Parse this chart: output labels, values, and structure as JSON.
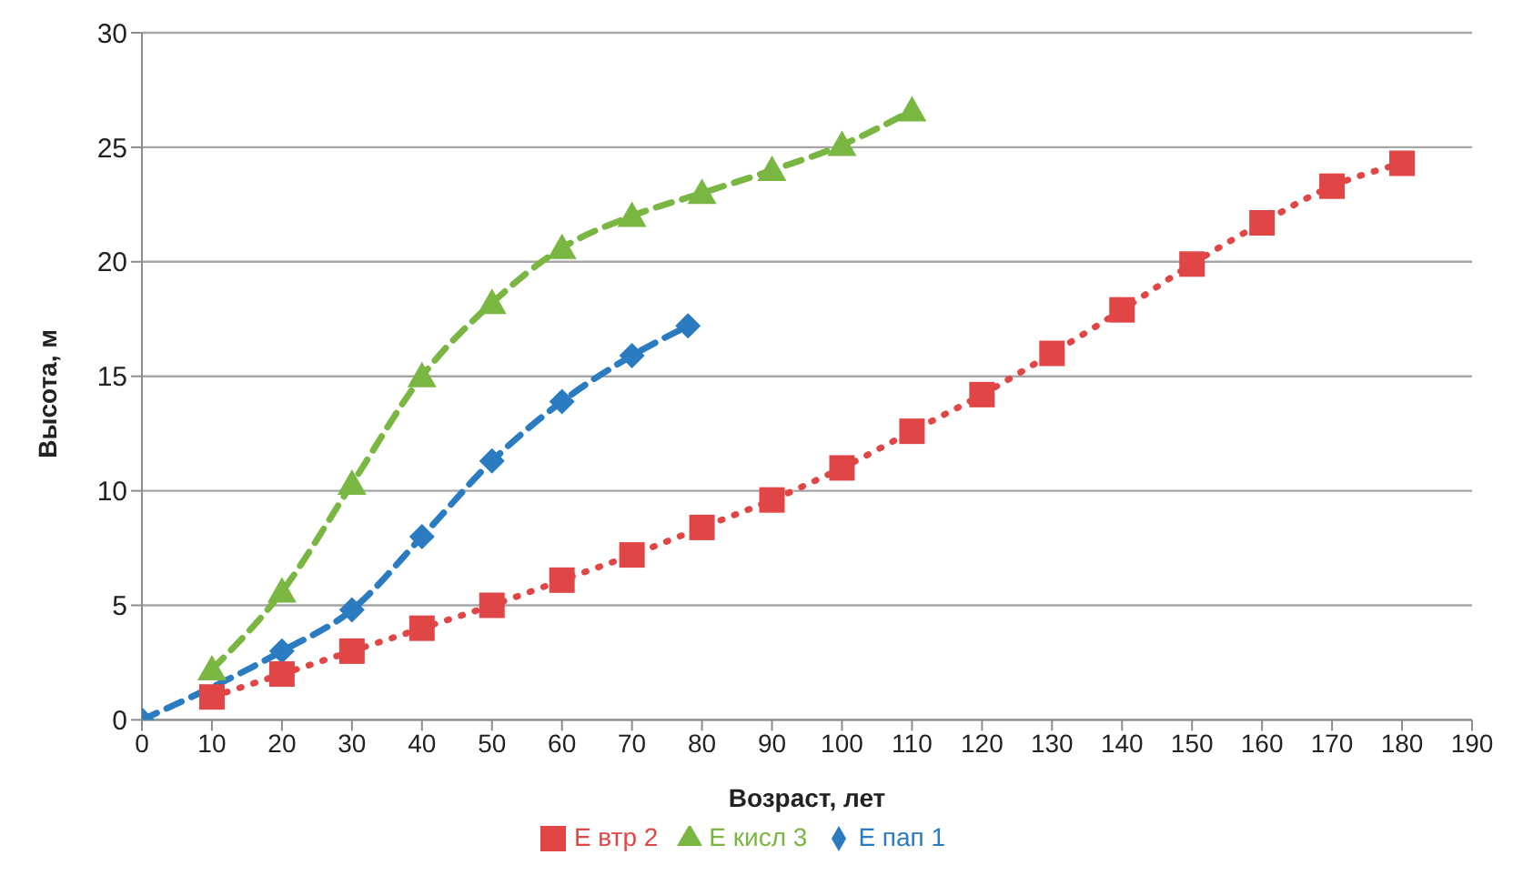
{
  "chart_data": {
    "type": "line",
    "xlabel": "Возраст, лет",
    "ylabel": "Высота, м",
    "xlim": [
      0,
      190
    ],
    "xticks": [
      0,
      10,
      20,
      30,
      40,
      50,
      60,
      70,
      80,
      90,
      100,
      110,
      120,
      130,
      140,
      150,
      160,
      170,
      180,
      190
    ],
    "ylim": [
      0,
      30
    ],
    "yticks": [
      0,
      5,
      10,
      15,
      20,
      25,
      30
    ],
    "grid": "y",
    "legend": "bottom",
    "series": [
      {
        "name": "Е пап 1",
        "color": "#2a7bc0",
        "marker": "diamond",
        "line_style": "dashed",
        "x": [
          0,
          20,
          30,
          40,
          50,
          60,
          70,
          78
        ],
        "values": [
          0,
          3.0,
          4.8,
          8.0,
          11.3,
          13.9,
          15.9,
          17.2
        ]
      },
      {
        "name": "Е втр 2",
        "color": "#e04646",
        "marker": "square",
        "line_style": "dotted",
        "x": [
          10,
          20,
          30,
          40,
          50,
          60,
          70,
          80,
          90,
          100,
          110,
          120,
          130,
          140,
          150,
          160,
          170,
          180
        ],
        "values": [
          1.0,
          2.0,
          3.0,
          4.0,
          5.0,
          6.1,
          7.2,
          8.4,
          9.6,
          11.0,
          12.6,
          14.2,
          16.0,
          17.9,
          19.9,
          21.7,
          23.3,
          24.3
        ]
      },
      {
        "name": "Е кисл 3",
        "color": "#7ab642",
        "marker": "triangle",
        "line_style": "dashed",
        "x": [
          10,
          20,
          30,
          40,
          50,
          60,
          70,
          80,
          90,
          100,
          110
        ],
        "values": [
          2.2,
          5.6,
          10.3,
          15.0,
          18.2,
          20.6,
          22.0,
          23.0,
          24.0,
          25.1,
          26.6
        ]
      }
    ]
  }
}
